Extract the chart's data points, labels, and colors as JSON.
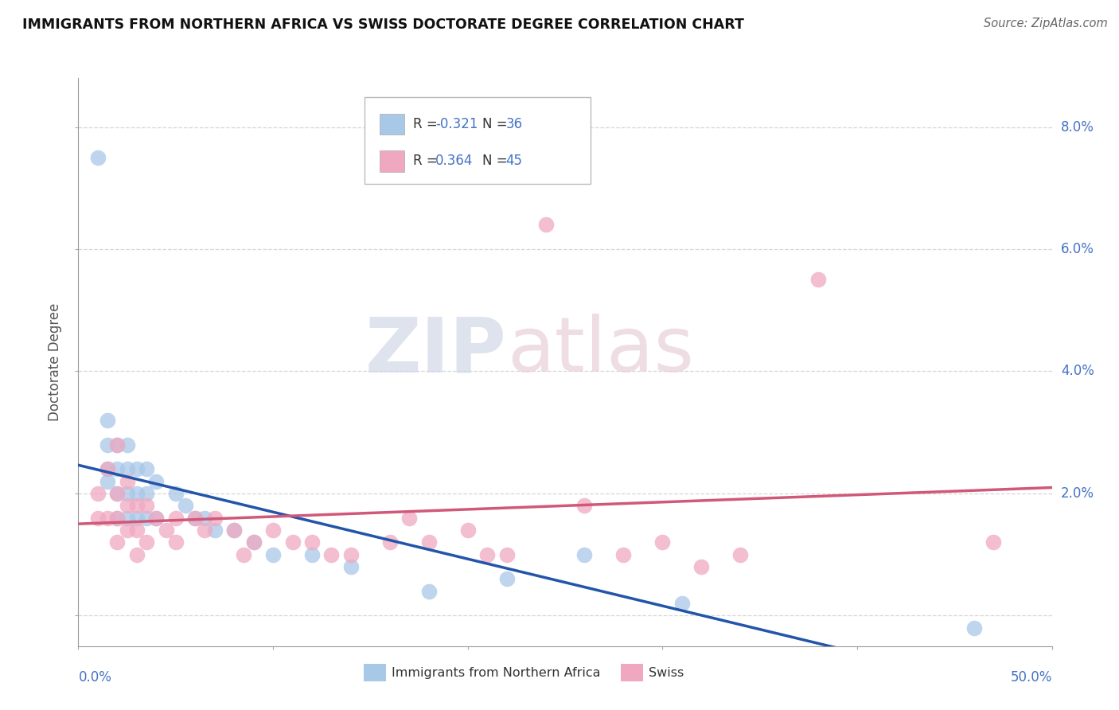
{
  "title": "IMMIGRANTS FROM NORTHERN AFRICA VS SWISS DOCTORATE DEGREE CORRELATION CHART",
  "source": "Source: ZipAtlas.com",
  "ylabel": "Doctorate Degree",
  "legend_blue_label": "Immigrants from Northern Africa",
  "legend_pink_label": "Swiss",
  "blue_r": -0.321,
  "blue_n": 36,
  "pink_r": 0.364,
  "pink_n": 45,
  "blue_color": "#a8c8e8",
  "pink_color": "#f0a8c0",
  "blue_line_color": "#2255aa",
  "pink_line_color": "#d05878",
  "background_color": "#ffffff",
  "grid_color": "#cccccc",
  "watermark_zip": "ZIP",
  "watermark_atlas": "atlas",
  "xlim": [
    0.0,
    0.5
  ],
  "ylim": [
    -0.005,
    0.088
  ],
  "yticks": [
    0.0,
    0.02,
    0.04,
    0.06,
    0.08
  ],
  "ytick_labels": [
    "",
    "2.0%",
    "4.0%",
    "6.0%",
    "8.0%"
  ],
  "blue_x": [
    0.01,
    0.015,
    0.015,
    0.015,
    0.015,
    0.02,
    0.02,
    0.02,
    0.02,
    0.025,
    0.025,
    0.025,
    0.025,
    0.03,
    0.03,
    0.03,
    0.035,
    0.035,
    0.035,
    0.04,
    0.04,
    0.05,
    0.055,
    0.06,
    0.065,
    0.07,
    0.08,
    0.09,
    0.1,
    0.12,
    0.14,
    0.18,
    0.22,
    0.26,
    0.31,
    0.46
  ],
  "blue_y": [
    0.075,
    0.032,
    0.028,
    0.024,
    0.022,
    0.028,
    0.024,
    0.02,
    0.016,
    0.028,
    0.024,
    0.02,
    0.016,
    0.024,
    0.02,
    0.016,
    0.024,
    0.02,
    0.016,
    0.022,
    0.016,
    0.02,
    0.018,
    0.016,
    0.016,
    0.014,
    0.014,
    0.012,
    0.01,
    0.01,
    0.008,
    0.004,
    0.006,
    0.01,
    0.002,
    -0.002
  ],
  "pink_x": [
    0.01,
    0.01,
    0.015,
    0.015,
    0.02,
    0.02,
    0.02,
    0.02,
    0.025,
    0.025,
    0.025,
    0.03,
    0.03,
    0.03,
    0.035,
    0.035,
    0.04,
    0.045,
    0.05,
    0.05,
    0.06,
    0.065,
    0.07,
    0.08,
    0.085,
    0.09,
    0.1,
    0.11,
    0.12,
    0.13,
    0.14,
    0.16,
    0.17,
    0.18,
    0.2,
    0.21,
    0.22,
    0.24,
    0.26,
    0.28,
    0.3,
    0.32,
    0.34,
    0.38,
    0.47
  ],
  "pink_y": [
    0.02,
    0.016,
    0.024,
    0.016,
    0.028,
    0.02,
    0.016,
    0.012,
    0.022,
    0.018,
    0.014,
    0.018,
    0.014,
    0.01,
    0.018,
    0.012,
    0.016,
    0.014,
    0.016,
    0.012,
    0.016,
    0.014,
    0.016,
    0.014,
    0.01,
    0.012,
    0.014,
    0.012,
    0.012,
    0.01,
    0.01,
    0.012,
    0.016,
    0.012,
    0.014,
    0.01,
    0.01,
    0.064,
    0.018,
    0.01,
    0.012,
    0.008,
    0.01,
    0.055,
    0.012
  ]
}
